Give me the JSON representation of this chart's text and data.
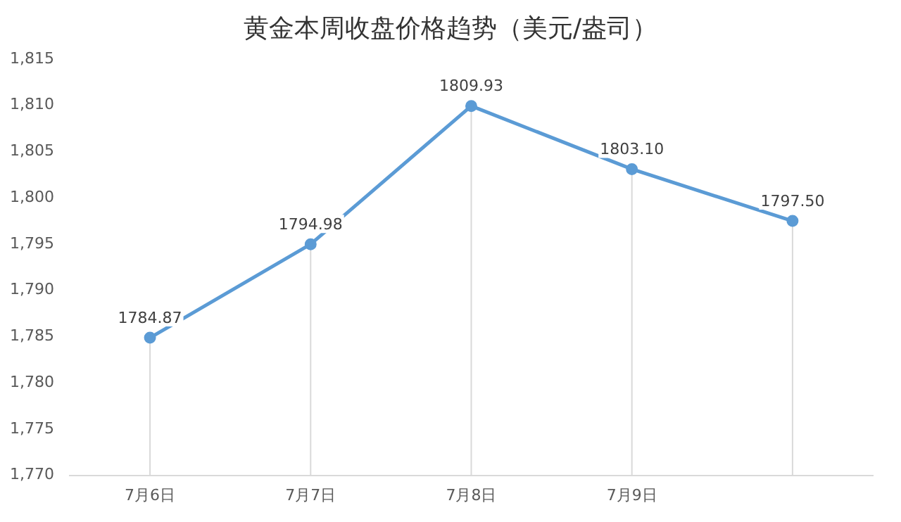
{
  "chart_data": {
    "type": "line",
    "title": "黄金本周收盘价格趋势（美元/盎司）",
    "categories": [
      "7月6日",
      "7月7日",
      "7月8日",
      "7月9日",
      null
    ],
    "series": [
      {
        "color": "#5b9bd5",
        "values": [
          1784.87,
          1794.98,
          1809.93,
          1803.1,
          1797.5
        ],
        "value_labels": [
          "1784.87",
          "1794.98",
          "1809.93",
          "1803.10",
          "1797.50"
        ]
      }
    ],
    "ylim": [
      1770,
      1815
    ],
    "yticks": [
      {
        "value": 1770,
        "label": "1,770"
      },
      {
        "value": 1775,
        "label": "1,775"
      },
      {
        "value": 1780,
        "label": "1,780"
      },
      {
        "value": 1785,
        "label": "1,785"
      },
      {
        "value": 1790,
        "label": "1,790"
      },
      {
        "value": 1795,
        "label": "1,795"
      },
      {
        "value": 1800,
        "label": "1,800"
      },
      {
        "value": 1805,
        "label": "1,805"
      },
      {
        "value": 1810,
        "label": "1,810"
      },
      {
        "value": 1815,
        "label": "1,815"
      }
    ],
    "grid": "x",
    "legend": false,
    "marker": "circle",
    "line_style": "solid"
  }
}
